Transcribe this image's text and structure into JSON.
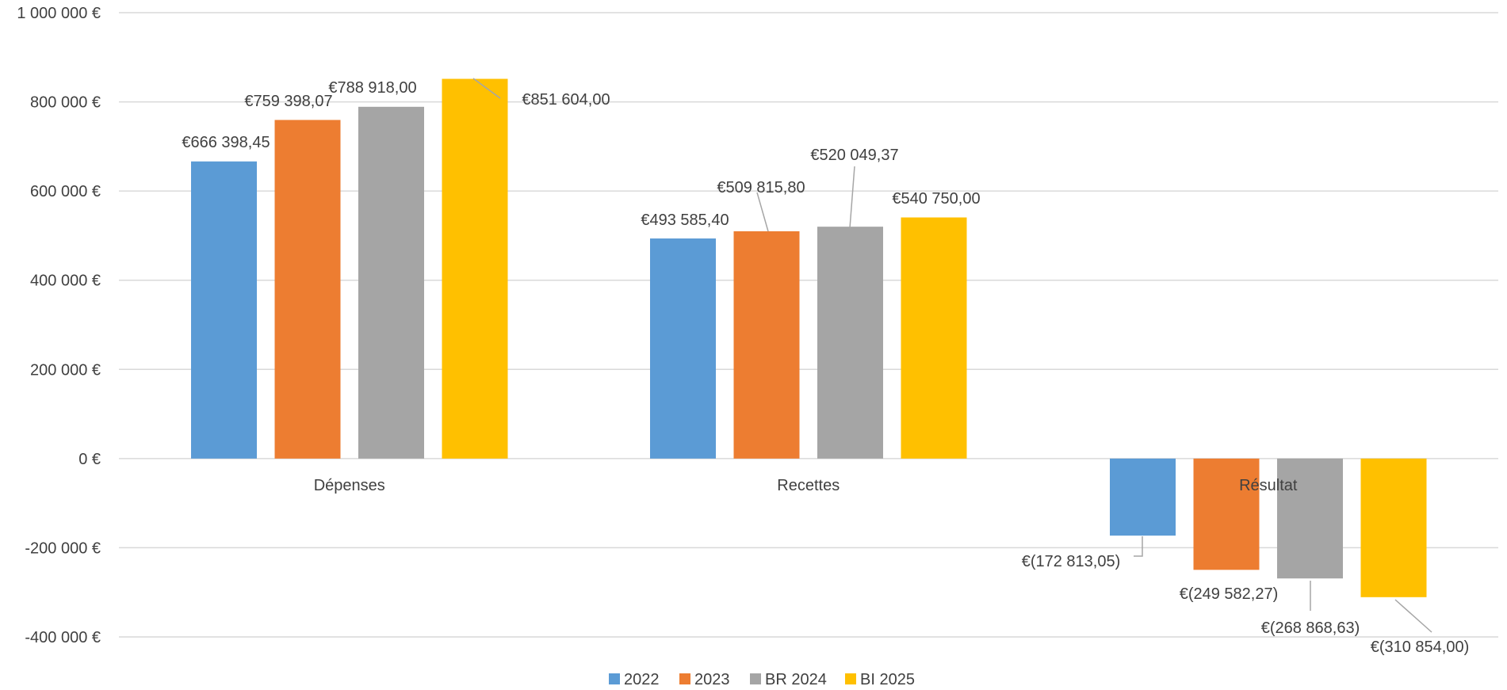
{
  "chart_data": {
    "type": "bar",
    "categories": [
      "Dépenses",
      "Recettes",
      "Résultat"
    ],
    "series": [
      {
        "name": "2022",
        "color": "#5B9BD5",
        "values": [
          666398.45,
          493585.4,
          -172813.05
        ],
        "labels": [
          "€666 398,45",
          "€493 585,40",
          "€(172 813,05)"
        ]
      },
      {
        "name": "2023",
        "color": "#ED7D31",
        "values": [
          759398.07,
          509815.8,
          -249582.27
        ],
        "labels": [
          "€759 398,07",
          "€509 815,80",
          "€(249 582,27)"
        ]
      },
      {
        "name": "BR 2024",
        "color": "#A5A5A5",
        "values": [
          788918.0,
          520049.37,
          -268868.63
        ],
        "labels": [
          "€788 918,00",
          "€520 049,37",
          "€(268 868,63)"
        ]
      },
      {
        "name": "BI 2025",
        "color": "#FFC000",
        "values": [
          851604.0,
          540750.0,
          -310854.0
        ],
        "labels": [
          "€851 604,00",
          "€540 750,00",
          "€(310 854,00)"
        ]
      }
    ],
    "y_ticks": [
      {
        "value": 1000000,
        "label": "1 000 000 €"
      },
      {
        "value": 800000,
        "label": "800 000 €"
      },
      {
        "value": 600000,
        "label": "600 000 €"
      },
      {
        "value": 400000,
        "label": "400 000 €"
      },
      {
        "value": 200000,
        "label": "200 000 €"
      },
      {
        "value": 0,
        "label": "0 €"
      },
      {
        "value": -200000,
        "label": "-200 000 €"
      },
      {
        "value": -400000,
        "label": "-400 000 €"
      }
    ],
    "ylim": [
      -400000,
      1000000
    ],
    "grid": true,
    "legend_position": "bottom",
    "title": "",
    "xlabel": "",
    "ylabel": ""
  }
}
